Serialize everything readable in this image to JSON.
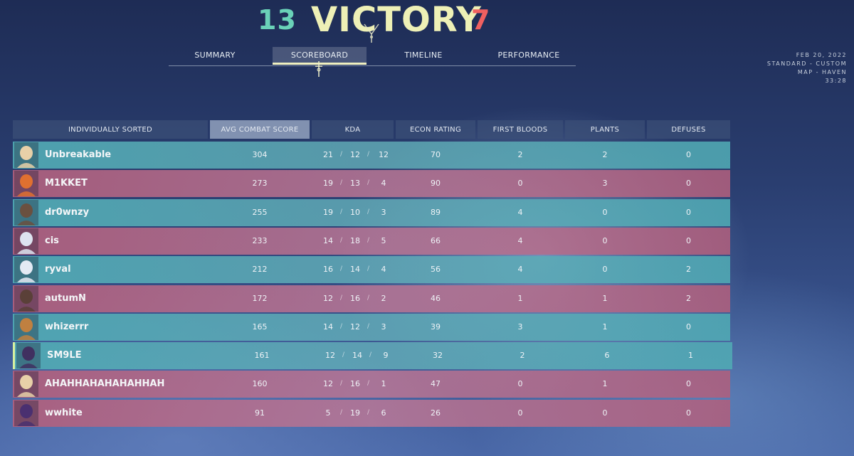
{
  "header": {
    "team_score": "13",
    "result": "VICTORY",
    "enemy_score": "7"
  },
  "tabs": [
    {
      "label": "SUMMARY",
      "active": false
    },
    {
      "label": "SCOREBOARD",
      "active": true
    },
    {
      "label": "TIMELINE",
      "active": false
    },
    {
      "label": "PERFORMANCE",
      "active": false
    }
  ],
  "match_info": {
    "date": "FEB 20, 2022",
    "mode": "STANDARD - CUSTOM",
    "map": "MAP - HAVEN",
    "duration": "33:28"
  },
  "scoreboard": {
    "columns": {
      "sort": "INDIVIDUALLY SORTED",
      "acs": "AVG COMBAT SCORE",
      "kda": "KDA",
      "econ": "ECON RATING",
      "first_bloods": "FIRST BLOODS",
      "plants": "PLANTS",
      "defuses": "DEFUSES"
    },
    "sorted_by": "AVG COMBAT SCORE",
    "players": [
      {
        "name": "Unbreakable",
        "team": "a",
        "acs": "304",
        "k": "21",
        "d": "12",
        "a": "12",
        "econ": "70",
        "fb": "2",
        "plants": "2",
        "defuses": "0",
        "avatar_color": "#e8d0a8"
      },
      {
        "name": "M1KKET",
        "team": "b",
        "acs": "273",
        "k": "19",
        "d": "13",
        "a": "4",
        "econ": "90",
        "fb": "0",
        "plants": "3",
        "defuses": "0",
        "avatar_color": "#e07030"
      },
      {
        "name": "dr0wnzy",
        "team": "a",
        "acs": "255",
        "k": "19",
        "d": "10",
        "a": "3",
        "econ": "89",
        "fb": "4",
        "plants": "0",
        "defuses": "0",
        "avatar_color": "#6a5040"
      },
      {
        "name": "cis",
        "team": "b",
        "acs": "233",
        "k": "14",
        "d": "18",
        "a": "5",
        "econ": "66",
        "fb": "4",
        "plants": "0",
        "defuses": "0",
        "avatar_color": "#dde4f0"
      },
      {
        "name": "ryval",
        "team": "a",
        "acs": "212",
        "k": "16",
        "d": "14",
        "a": "4",
        "econ": "56",
        "fb": "4",
        "plants": "0",
        "defuses": "2",
        "avatar_color": "#e4eaf4"
      },
      {
        "name": "autumN",
        "team": "b",
        "acs": "172",
        "k": "12",
        "d": "16",
        "a": "2",
        "econ": "46",
        "fb": "1",
        "plants": "1",
        "defuses": "2",
        "avatar_color": "#5a4038"
      },
      {
        "name": "whizerrr",
        "team": "a",
        "acs": "165",
        "k": "14",
        "d": "12",
        "a": "3",
        "econ": "39",
        "fb": "3",
        "plants": "1",
        "defuses": "0",
        "avatar_color": "#c08040"
      },
      {
        "name": "SM9LE",
        "team": "a",
        "acs": "161",
        "k": "12",
        "d": "14",
        "a": "9",
        "econ": "32",
        "fb": "2",
        "plants": "6",
        "defuses": "1",
        "avatar_color": "#403060",
        "me": true
      },
      {
        "name": "AHAHHAHAHAHAHHAH",
        "team": "b",
        "acs": "160",
        "k": "12",
        "d": "16",
        "a": "1",
        "econ": "47",
        "fb": "0",
        "plants": "1",
        "defuses": "0",
        "avatar_color": "#e8d0a8"
      },
      {
        "name": "wwhite",
        "team": "b",
        "acs": "91",
        "k": "5",
        "d": "19",
        "a": "6",
        "econ": "26",
        "fb": "0",
        "plants": "0",
        "defuses": "0",
        "avatar_color": "#4a3070"
      }
    ]
  }
}
